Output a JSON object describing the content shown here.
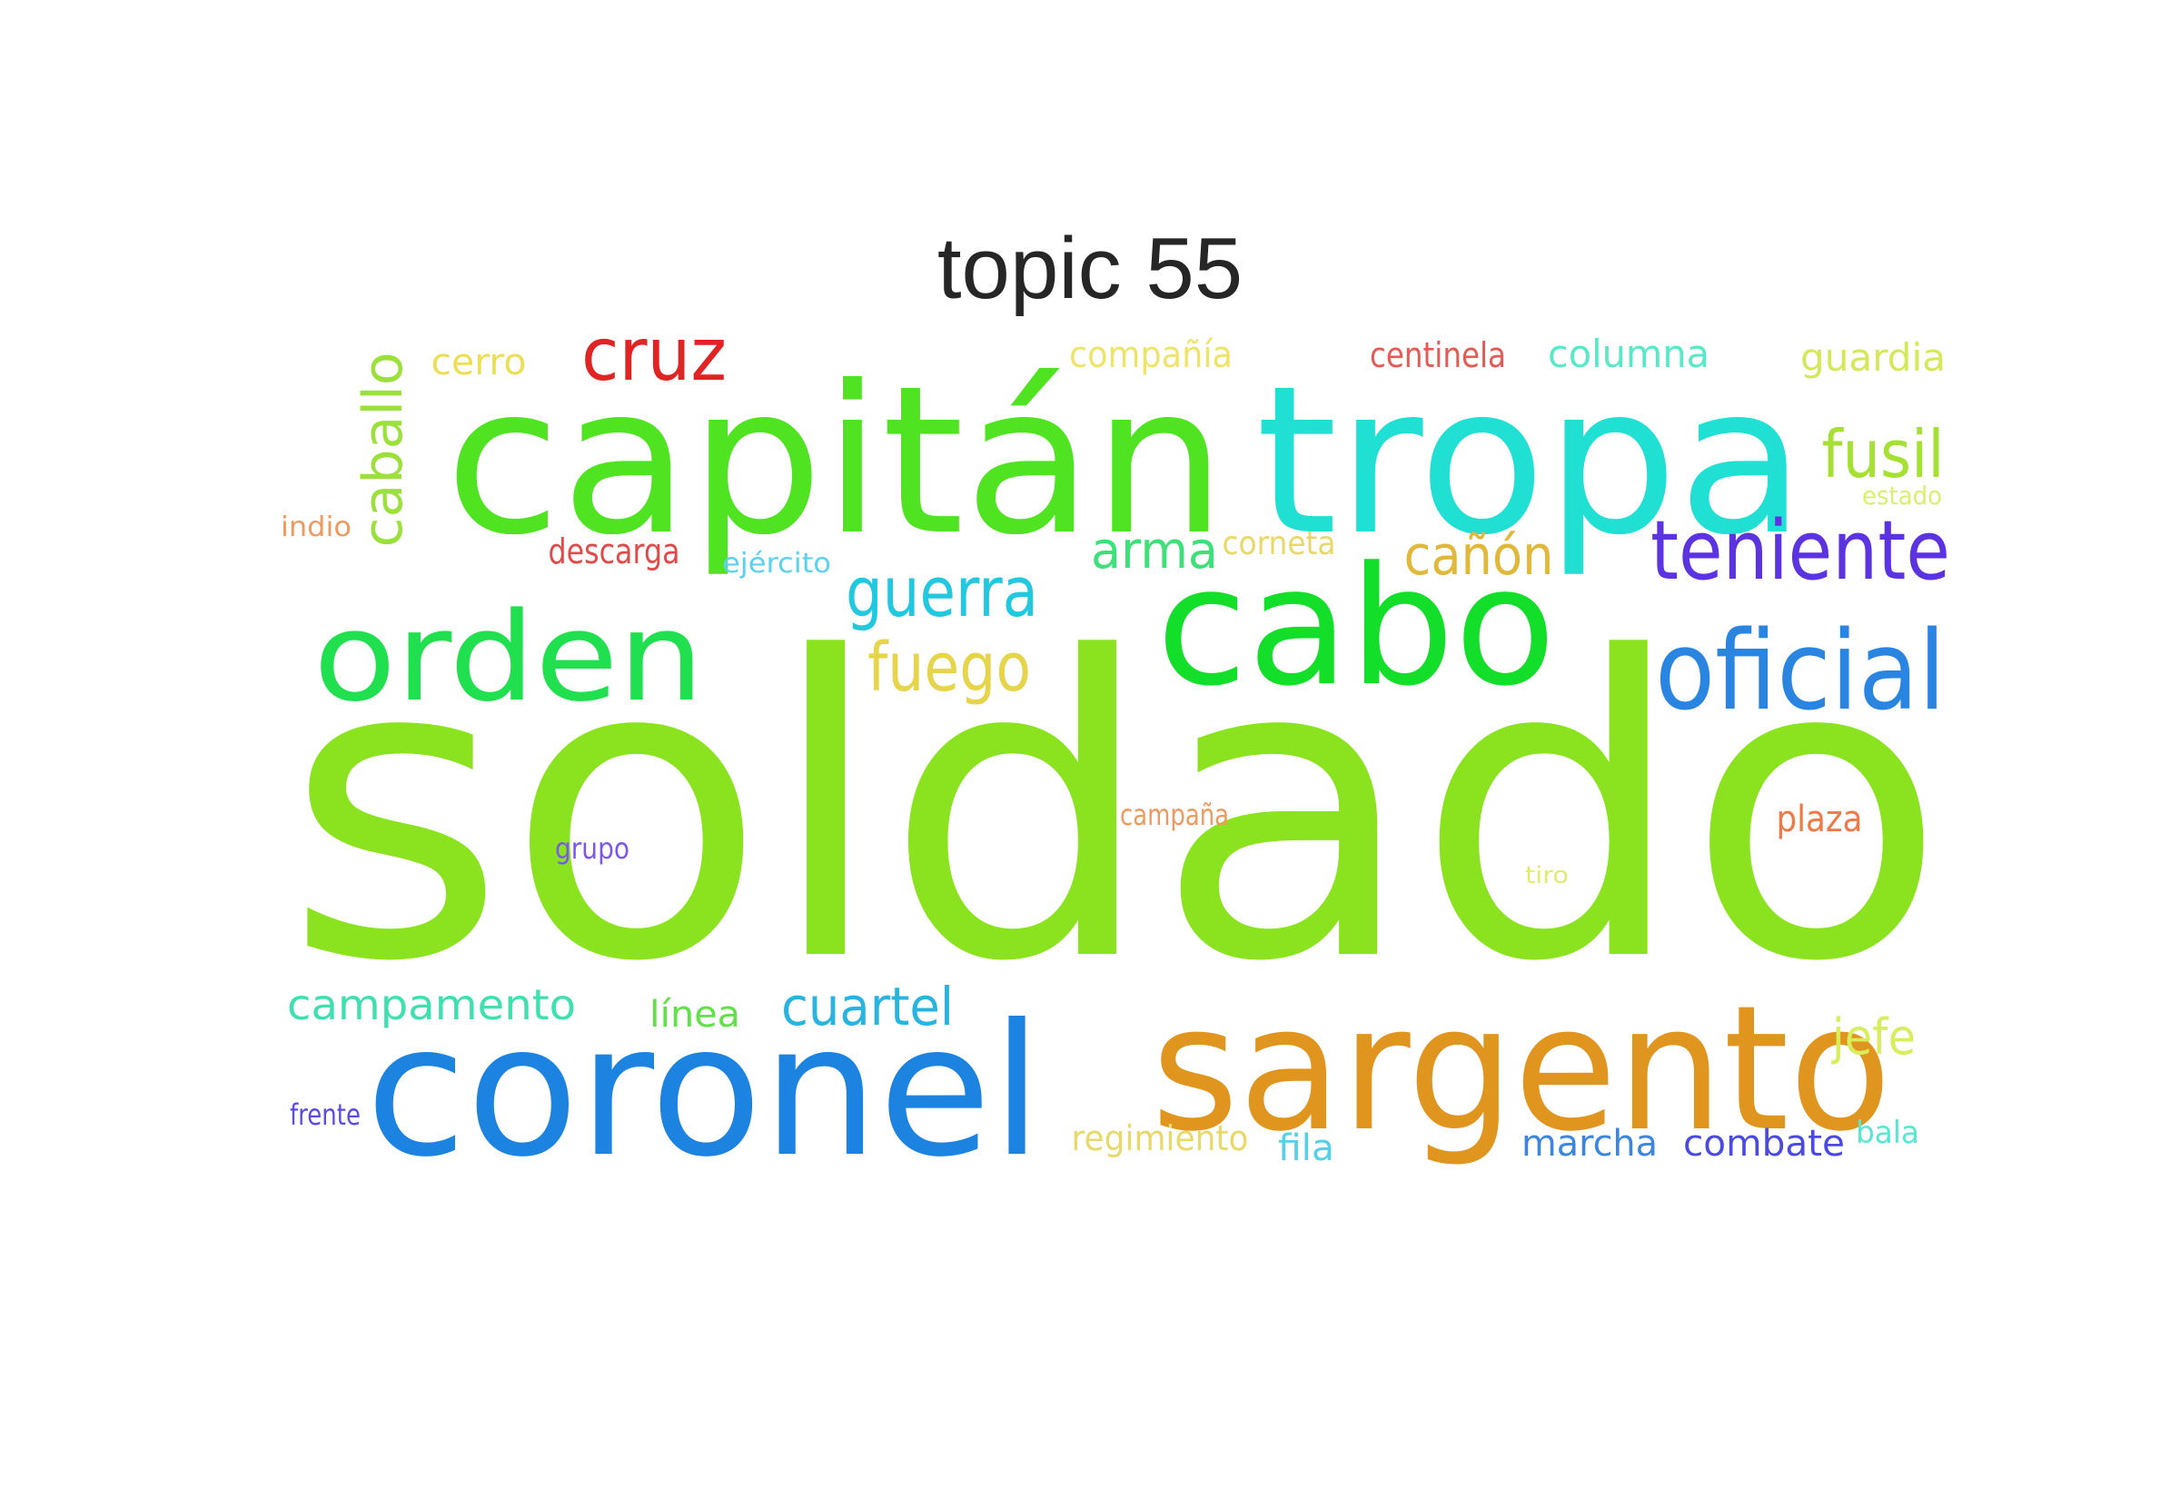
{
  "title": "topic 55",
  "words": [
    {
      "text": "soldado",
      "color": "#8ae31e"
    },
    {
      "text": "capitán",
      "color": "#4fe321"
    },
    {
      "text": "tropa",
      "color": "#1fe0d2"
    },
    {
      "text": "cabo",
      "color": "#13de2a"
    },
    {
      "text": "coronel",
      "color": "#1d83e0"
    },
    {
      "text": "sargento",
      "color": "#e0951f"
    },
    {
      "text": "orden",
      "color": "#21e04f"
    },
    {
      "text": "oficial",
      "color": "#2a85e0"
    },
    {
      "text": "teniente",
      "color": "#5b33e0"
    },
    {
      "text": "cruz",
      "color": "#e02424"
    },
    {
      "text": "guerra",
      "color": "#22c7e0"
    },
    {
      "text": "fuego",
      "color": "#e6d44a"
    },
    {
      "text": "fusil",
      "color": "#a6e034"
    },
    {
      "text": "cañón",
      "color": "#e0b83a"
    },
    {
      "text": "arma",
      "color": "#3ee07a"
    },
    {
      "text": "caballo",
      "color": "#9be03b"
    },
    {
      "text": "cuartel",
      "color": "#29b4e0"
    },
    {
      "text": "campamento",
      "color": "#3ee0b0"
    },
    {
      "text": "jefe",
      "color": "#d8ee5a"
    },
    {
      "text": "línea",
      "color": "#61e04a"
    },
    {
      "text": "compañía",
      "color": "#eee46a"
    },
    {
      "text": "columna",
      "color": "#59e8c8"
    },
    {
      "text": "guardia",
      "color": "#d5e858"
    },
    {
      "text": "centinela",
      "color": "#e55a55"
    },
    {
      "text": "cerro",
      "color": "#ecdf55"
    },
    {
      "text": "descarga",
      "color": "#e04a4a"
    },
    {
      "text": "corneta",
      "color": "#e8d86a"
    },
    {
      "text": "ejército",
      "color": "#5ad2ee"
    },
    {
      "text": "indio",
      "color": "#ee9a5e"
    },
    {
      "text": "estado",
      "color": "#dbee6e"
    },
    {
      "text": "campaña",
      "color": "#ee9a5e"
    },
    {
      "text": "plaza",
      "color": "#ee7a48"
    },
    {
      "text": "grupo",
      "color": "#7a58ea"
    },
    {
      "text": "tiro",
      "color": "#e3ea72"
    },
    {
      "text": "regimiento",
      "color": "#e9d86a"
    },
    {
      "text": "fila",
      "color": "#56cfe8"
    },
    {
      "text": "marcha",
      "color": "#3d86e0"
    },
    {
      "text": "combate",
      "color": "#4b4ae0"
    },
    {
      "text": "bala",
      "color": "#56e8d2"
    },
    {
      "text": "frente",
      "color": "#5a4ae8"
    }
  ]
}
